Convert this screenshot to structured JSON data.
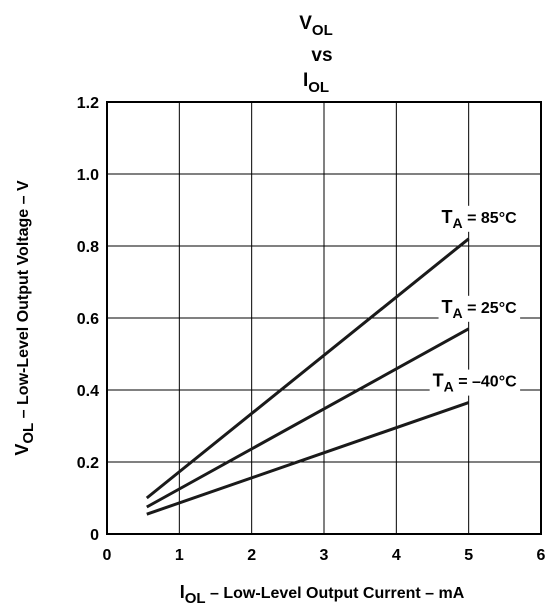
{
  "chart_data": {
    "type": "line",
    "title": {
      "line1_main": "V",
      "line1_sub": "OL",
      "line2": "vs",
      "line3_main": "I",
      "line3_sub": "OL"
    },
    "xlabel": {
      "main": "I",
      "sub": "OL",
      "rest": " – Low-Level Output Current – mA"
    },
    "ylabel": {
      "main": "V",
      "sub": "OL",
      "rest": " – Low-Level Output Voltage – V"
    },
    "xlim": [
      0,
      6
    ],
    "ylim": [
      0,
      1.2
    ],
    "x_ticks": [
      "0",
      "1",
      "2",
      "3",
      "4",
      "5",
      "6"
    ],
    "y_ticks": [
      "0",
      "0.2",
      "0.4",
      "0.6",
      "0.8",
      "1.0",
      "1.2"
    ],
    "grid": true,
    "colors": {
      "line": "#1a1a1a",
      "grid": "#000000",
      "background": "#ffffff"
    },
    "series": [
      {
        "name": "T_A = 85°C",
        "label_main": "T",
        "label_sub": "A",
        "label_rest": " = 85°C",
        "x": [
          0.55,
          5.0
        ],
        "y": [
          0.1,
          0.82
        ]
      },
      {
        "name": "T_A = 25°C",
        "label_main": "T",
        "label_sub": "A",
        "label_rest": " = 25°C",
        "x": [
          0.55,
          5.0
        ],
        "y": [
          0.075,
          0.57
        ]
      },
      {
        "name": "T_A = –40°C",
        "label_main": "T",
        "label_sub": "A",
        "label_rest": " = –40°C",
        "x": [
          0.55,
          5.0
        ],
        "y": [
          0.055,
          0.365
        ]
      }
    ]
  }
}
